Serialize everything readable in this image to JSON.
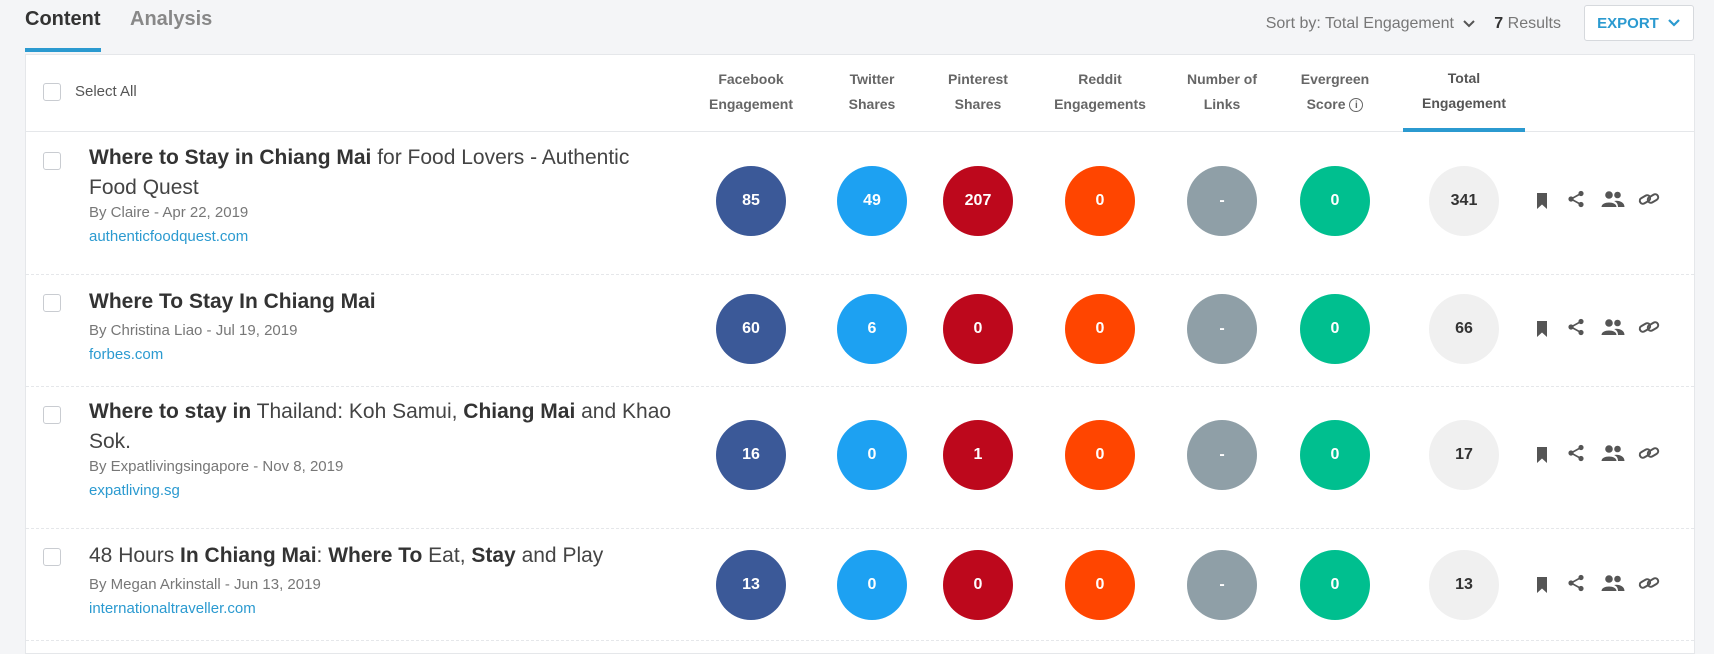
{
  "tabs": [
    {
      "label": "Content"
    },
    {
      "label": "Analysis"
    }
  ],
  "sort": {
    "label": "Sort by: Total Engagement"
  },
  "results": {
    "count": "7",
    "label": "Results"
  },
  "export": {
    "label": "EXPORT"
  },
  "table": {
    "select_all_label": "Select All",
    "columns": [
      {
        "line1": "Facebook",
        "line2": "Engagement"
      },
      {
        "line1": "Twitter",
        "line2": "Shares"
      },
      {
        "line1": "Pinterest",
        "line2": "Shares"
      },
      {
        "line1": "Reddit",
        "line2": "Engagements"
      },
      {
        "line1": "Number of",
        "line2": "Links"
      },
      {
        "line1": "Evergreen",
        "line2": "Score"
      },
      {
        "line1": "Total",
        "line2": "Engagement"
      }
    ]
  },
  "rows": [
    {
      "title_parts": [
        {
          "text": "Where to Stay in Chiang Mai",
          "bold": true
        },
        {
          "text": " for Food Lovers - Authentic Food Quest",
          "bold": false
        }
      ],
      "byline": "By Claire - Apr 22, 2019",
      "domain": "authenticfoodquest.com",
      "facebook": "85",
      "twitter": "49",
      "pinterest": "207",
      "reddit": "0",
      "links": "-",
      "evergreen": "0",
      "total": "341"
    },
    {
      "title_parts": [
        {
          "text": "Where To Stay In Chiang Mai",
          "bold": true
        }
      ],
      "byline": "By Christina Liao - Jul 19, 2019",
      "domain": "forbes.com",
      "facebook": "60",
      "twitter": "6",
      "pinterest": "0",
      "reddit": "0",
      "links": "-",
      "evergreen": "0",
      "total": "66"
    },
    {
      "title_parts": [
        {
          "text": "Where to stay in",
          "bold": true
        },
        {
          "text": " Thailand: Koh Samui, ",
          "bold": false
        },
        {
          "text": "Chiang Mai",
          "bold": true
        },
        {
          "text": " and Khao Sok.",
          "bold": false
        }
      ],
      "byline": "By Expatlivingsingapore - Nov 8, 2019",
      "domain": "expatliving.sg",
      "facebook": "16",
      "twitter": "0",
      "pinterest": "1",
      "reddit": "0",
      "links": "-",
      "evergreen": "0",
      "total": "17"
    },
    {
      "title_parts": [
        {
          "text": "48 Hours ",
          "bold": false
        },
        {
          "text": "In Chiang Mai",
          "bold": true
        },
        {
          "text": ": ",
          "bold": false
        },
        {
          "text": "Where To",
          "bold": true
        },
        {
          "text": " Eat, ",
          "bold": false
        },
        {
          "text": "Stay",
          "bold": true
        },
        {
          "text": " and Play",
          "bold": false
        }
      ],
      "byline": "By Megan Arkinstall - Jun 13, 2019",
      "domain": "internationaltraveller.com",
      "facebook": "13",
      "twitter": "0",
      "pinterest": "0",
      "reddit": "0",
      "links": "-",
      "evergreen": "0",
      "total": "13"
    }
  ],
  "colors": {
    "accent": "#2b9ad0",
    "facebook": "#3b5998",
    "twitter": "#1da1f2",
    "pinterest": "#bd081c",
    "reddit": "#ff4500",
    "links": "#8f9fa7",
    "evergreen": "#00bf8f",
    "total": "#f0f0f0"
  },
  "row_actions": [
    "bookmark-icon",
    "share-icon",
    "people-icon",
    "link-icon"
  ]
}
